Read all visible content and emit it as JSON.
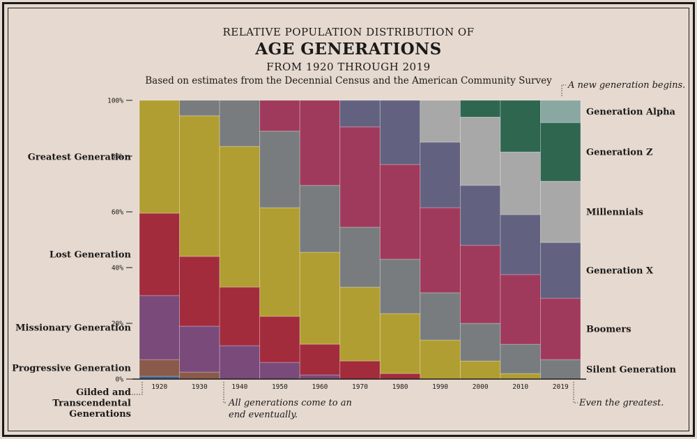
{
  "title": {
    "line1": "RELATIVE POPULATION DISTRIBUTION OF",
    "line2": "AGE GENERATIONS",
    "line3": "FROM 1920 THROUGH 2019",
    "subtitle": "Based on estimates from the Decennial Census and the American Community Survey"
  },
  "annotations": {
    "top_right": "A new generation begins.",
    "bottom_middle_1": "All generations come to an",
    "bottom_middle_2": "end eventually.",
    "bottom_right": "Even the greatest."
  },
  "left_labels": [
    {
      "generation": "Greatest Generation",
      "lines": [
        "Greatest Generation"
      ]
    },
    {
      "generation": "Lost Generation",
      "lines": [
        "Lost Generation"
      ]
    },
    {
      "generation": "Missionary Generation",
      "lines": [
        "Missionary Generation"
      ]
    },
    {
      "generation": "Progressive Generation",
      "lines": [
        "Progressive Generation"
      ]
    },
    {
      "generation": "Gilded and Transcendental Generations",
      "lines": [
        "Gilded and",
        "Transcendental",
        "Generations"
      ]
    }
  ],
  "right_labels": [
    {
      "generation": "Generation Alpha",
      "lines": [
        "Generation Alpha"
      ]
    },
    {
      "generation": "Generation Z",
      "lines": [
        "Generation Z"
      ]
    },
    {
      "generation": "Millennials",
      "lines": [
        "Millennials"
      ]
    },
    {
      "generation": "Generation X",
      "lines": [
        "Generation X"
      ]
    },
    {
      "generation": "Boomers",
      "lines": [
        "Boomers"
      ]
    },
    {
      "generation": "Silent Generation",
      "lines": [
        "Silent Generation"
      ]
    }
  ],
  "chart_data": {
    "type": "bar",
    "stacked": true,
    "normalized": true,
    "categories": [
      "1920",
      "1930",
      "1940",
      "1950",
      "1960",
      "1970",
      "1980",
      "1990",
      "2000",
      "2010",
      "2019"
    ],
    "y_ticks": [
      "0%",
      "20%",
      "40%",
      "60%",
      "80%",
      "100%"
    ],
    "ylim": [
      0,
      100
    ],
    "series": [
      {
        "name": "Gilded and Transcendental Generations",
        "color": "#3f5f8a",
        "values": [
          1,
          0,
          0,
          0,
          0,
          0,
          0,
          0,
          0,
          0,
          0
        ]
      },
      {
        "name": "Progressive Generation",
        "color": "#8a5a4a",
        "values": [
          6,
          2.5,
          0,
          0,
          0,
          0,
          0,
          0,
          0,
          0,
          0
        ]
      },
      {
        "name": "Missionary Generation",
        "color": "#7a4a7a",
        "values": [
          23,
          16.5,
          12,
          6,
          1.5,
          0,
          0,
          0,
          0,
          0,
          0
        ]
      },
      {
        "name": "Lost Generation",
        "color": "#a22c3c",
        "values": [
          29.5,
          25,
          21,
          16.5,
          11,
          6.5,
          2,
          0,
          0,
          0,
          0
        ]
      },
      {
        "name": "Greatest Generation",
        "color": "#b19e32",
        "values": [
          40.5,
          50.5,
          50.5,
          39,
          33,
          26.5,
          21.5,
          14,
          6.5,
          2,
          0
        ]
      },
      {
        "name": "Silent Generation",
        "color": "#787c7e",
        "values": [
          0,
          5.5,
          16.5,
          27.5,
          24,
          21.5,
          19.5,
          17,
          13.5,
          10.5,
          7
        ]
      },
      {
        "name": "Boomers",
        "color": "#a03a5c",
        "values": [
          0,
          0,
          0,
          11,
          30.5,
          36,
          34,
          30.5,
          28,
          25,
          22
        ]
      },
      {
        "name": "Generation X",
        "color": "#626280",
        "values": [
          0,
          0,
          0,
          0,
          0,
          9.5,
          23,
          23.5,
          21.5,
          21.5,
          20
        ]
      },
      {
        "name": "Millennials",
        "color": "#a8a8a8",
        "values": [
          0,
          0,
          0,
          0,
          0,
          0,
          0,
          15,
          24.5,
          22.5,
          22
        ]
      },
      {
        "name": "Generation Z",
        "color": "#2e6650",
        "values": [
          0,
          0,
          0,
          0,
          0,
          0,
          0,
          0,
          6,
          18.5,
          21
        ]
      },
      {
        "name": "Generation Alpha",
        "color": "#8aa8a2",
        "values": [
          0,
          0,
          0,
          0,
          0,
          0,
          0,
          0,
          0,
          0,
          8
        ]
      }
    ]
  }
}
